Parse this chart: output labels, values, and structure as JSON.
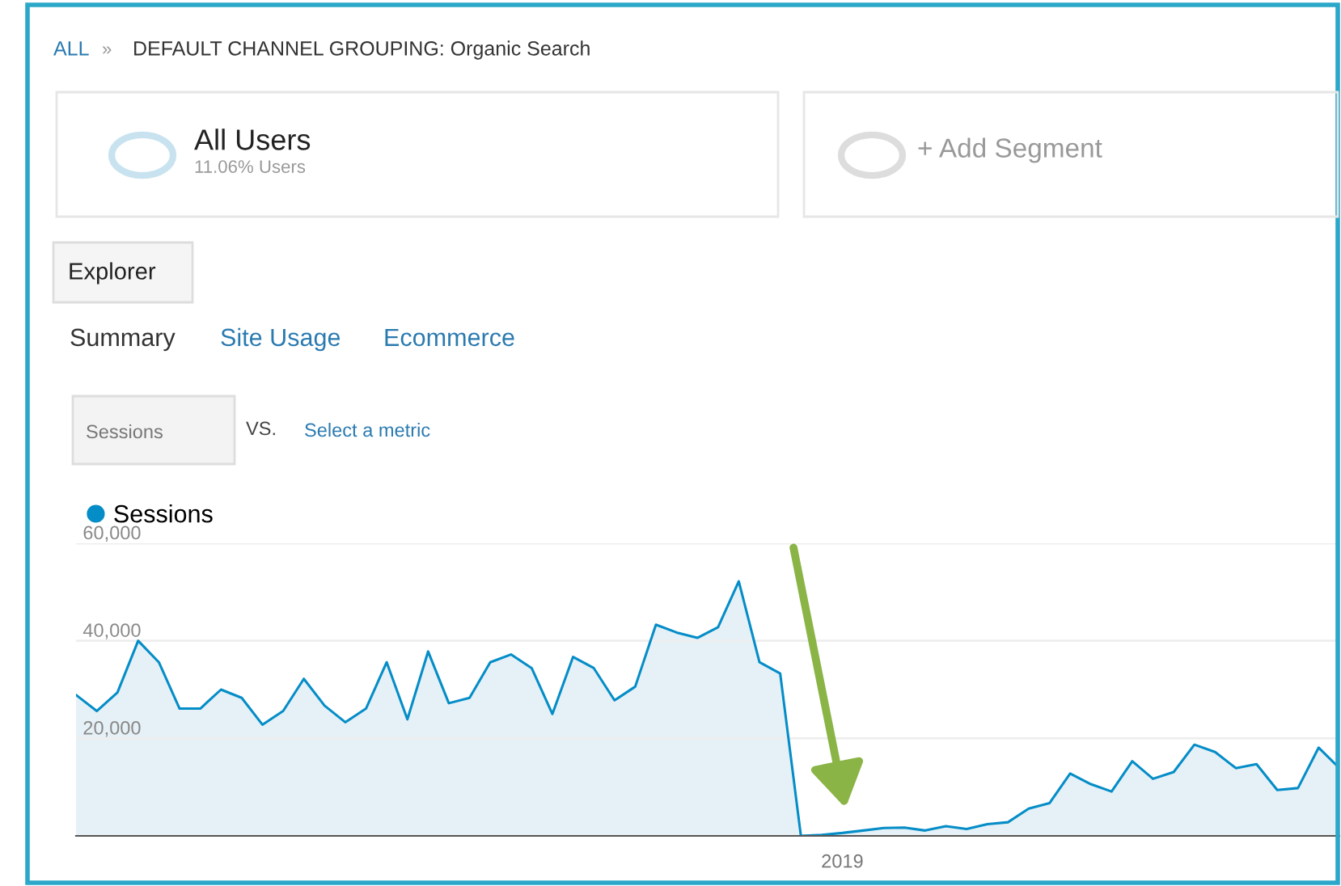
{
  "chart_data": {
    "type": "area",
    "annotations": [
      "ALL",
      "»",
      "DEFAULT CHANNEL GROUPING: Organic Search",
      "All Users",
      "11.06% Users",
      "+ Add Segment",
      "Explorer",
      "Summary",
      "Site Usage",
      "Ecommerce",
      "Sessions",
      "VS.",
      "Select a metric"
    ],
    "series": [
      {
        "name": "Sessions",
        "color": "#058dc7",
        "values": [
          28900,
          25600,
          29400,
          40000,
          35600,
          26100,
          26100,
          30000,
          28300,
          22800,
          25600,
          32200,
          26700,
          23300,
          26100,
          35600,
          23900,
          37800,
          27200,
          28300,
          35600,
          37200,
          34400,
          25000,
          36700,
          34400,
          27800,
          30600,
          43300,
          41700,
          40600,
          42800,
          52200,
          35600,
          33300,
          0,
          200,
          600,
          1100,
          1600,
          1700,
          1100,
          2000,
          1400,
          2400,
          2800,
          5600,
          6700,
          12800,
          10600,
          9100,
          15300,
          11700,
          13100,
          18700,
          17200,
          13900,
          14700,
          9400,
          9800,
          18100,
          13900
        ]
      }
    ],
    "categories": [
      null,
      null,
      null,
      null,
      null,
      null,
      null,
      null,
      null,
      null,
      null,
      null,
      null,
      null,
      null,
      null,
      null,
      null,
      null,
      null,
      null,
      null,
      null,
      null,
      null,
      null,
      null,
      null,
      null,
      null,
      null,
      null,
      null,
      null,
      null,
      null,
      null,
      "2019",
      null,
      null,
      null,
      null,
      null,
      null,
      null,
      null,
      null,
      null,
      null,
      null,
      null,
      null,
      null,
      null,
      null,
      null,
      null,
      null,
      null,
      null,
      null,
      null
    ],
    "ylim": [
      0,
      60000
    ],
    "yticks": [
      {
        "value": 0,
        "label": null
      },
      {
        "value": 20000,
        "label": "20,000"
      },
      {
        "value": 40000,
        "label": "40,000"
      },
      {
        "value": 60000,
        "label": "60,000"
      }
    ],
    "grid": "y",
    "legend": "top left",
    "marker": "none"
  }
}
